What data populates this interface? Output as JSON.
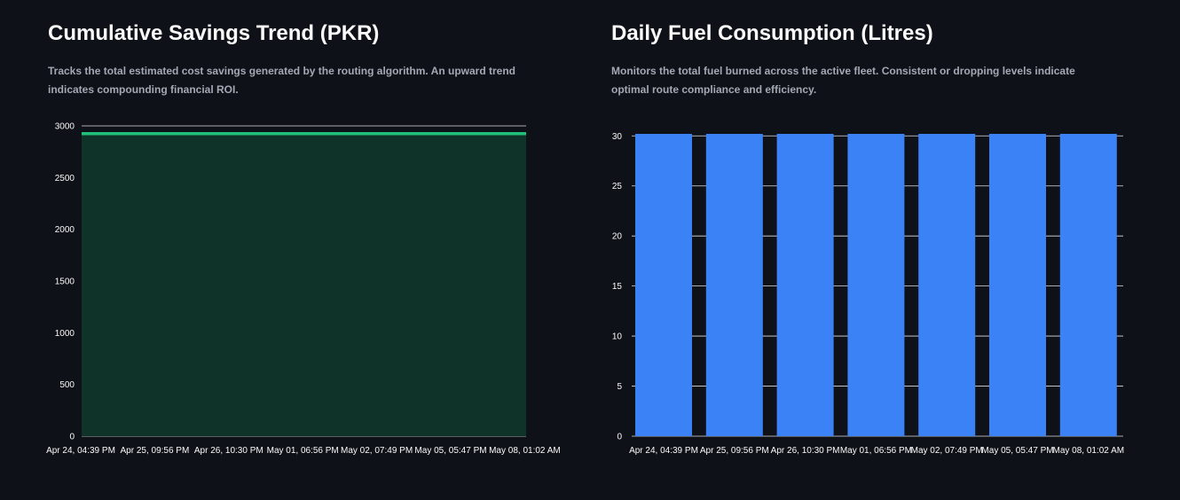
{
  "chart_data": [
    {
      "type": "area",
      "title": "Cumulative Savings Trend (PKR)",
      "description": "Tracks the total estimated cost savings generated by the routing algorithm. An upward trend indicates compounding financial ROI.",
      "categories": [
        "Apr 24, 04:39 PM",
        "Apr 25, 09:56 PM",
        "Apr 26, 10:30 PM",
        "May 01, 06:56 PM",
        "May 02, 07:49 PM",
        "May 05, 05:47 PM",
        "May 08, 01:02 AM"
      ],
      "values": [
        2925,
        2925,
        2925,
        2925,
        2925,
        2925,
        2925
      ],
      "ylim": [
        0,
        3000
      ],
      "yticks": [
        0,
        500,
        1000,
        1500,
        2000,
        2500,
        3000
      ],
      "grid": true,
      "colors": {
        "line": "#21c17a",
        "fill": "#0f3229",
        "grid": "#dfe1e6"
      }
    },
    {
      "type": "bar",
      "title": "Daily Fuel Consumption (Litres)",
      "description": "Monitors the total fuel burned across the active fleet. Consistent or dropping levels indicate optimal route compliance and efficiency.",
      "categories": [
        "Apr 24, 04:39 PM",
        "Apr 25, 09:56 PM",
        "Apr 26, 10:30 PM",
        "May 01, 06:56 PM",
        "May 02, 07:49 PM",
        "May 05, 05:47 PM",
        "May 08, 01:02 AM"
      ],
      "values": [
        30.2,
        30.2,
        30.2,
        30.2,
        30.2,
        30.2,
        30.2
      ],
      "ylim": [
        0,
        30.2
      ],
      "yticks": [
        0,
        5,
        10,
        15,
        20,
        25,
        30
      ],
      "grid": true,
      "colors": {
        "bar": "#3b82f6",
        "grid": "#dfe1e6"
      }
    }
  ]
}
